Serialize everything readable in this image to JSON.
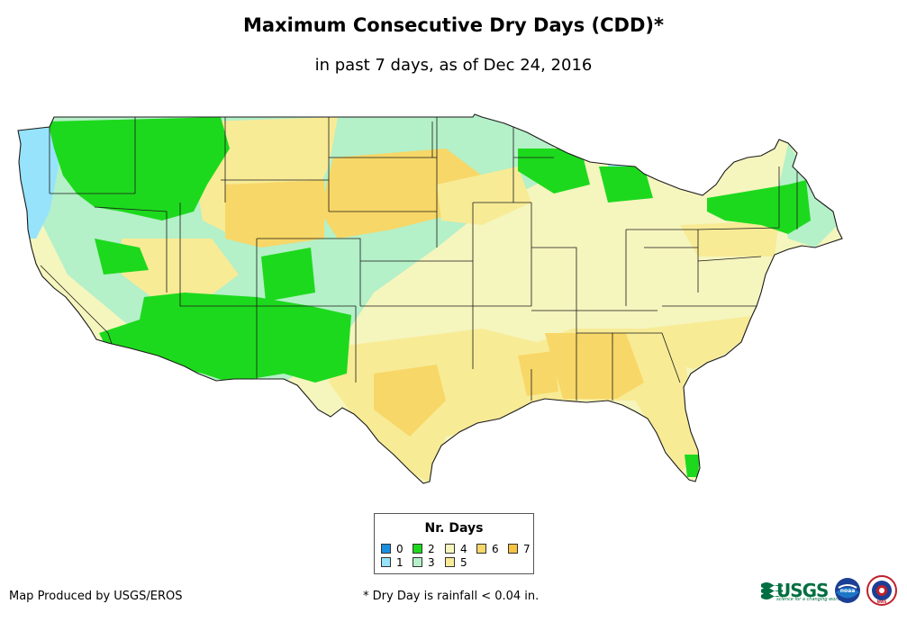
{
  "title": "Maximum Consecutive Dry Days (CDD)*",
  "subtitle": "in past 7 days, as of Dec 24, 2016",
  "legend": {
    "title": "Nr. Days",
    "items": [
      {
        "label": "0",
        "color": "#1a8fe0"
      },
      {
        "label": "1",
        "color": "#96e3fb"
      },
      {
        "label": "2",
        "color": "#1dd91d"
      },
      {
        "label": "3",
        "color": "#b4f0c8"
      },
      {
        "label": "4",
        "color": "#f5f5be"
      },
      {
        "label": "5",
        "color": "#f8eb96"
      },
      {
        "label": "6",
        "color": "#f7d767"
      },
      {
        "label": "7",
        "color": "#f5c242"
      }
    ]
  },
  "footer": {
    "producer": "Map Produced by USGS/EROS",
    "note": "* Dry Day is rainfall < 0.04 in."
  },
  "logos": {
    "usgs": "USGS",
    "usgs_tagline": "science for a changing world",
    "noaa": "noaa",
    "nws": "NWS"
  },
  "colors": {
    "state_border": "#1a1a1a",
    "background": "#ffffff"
  }
}
